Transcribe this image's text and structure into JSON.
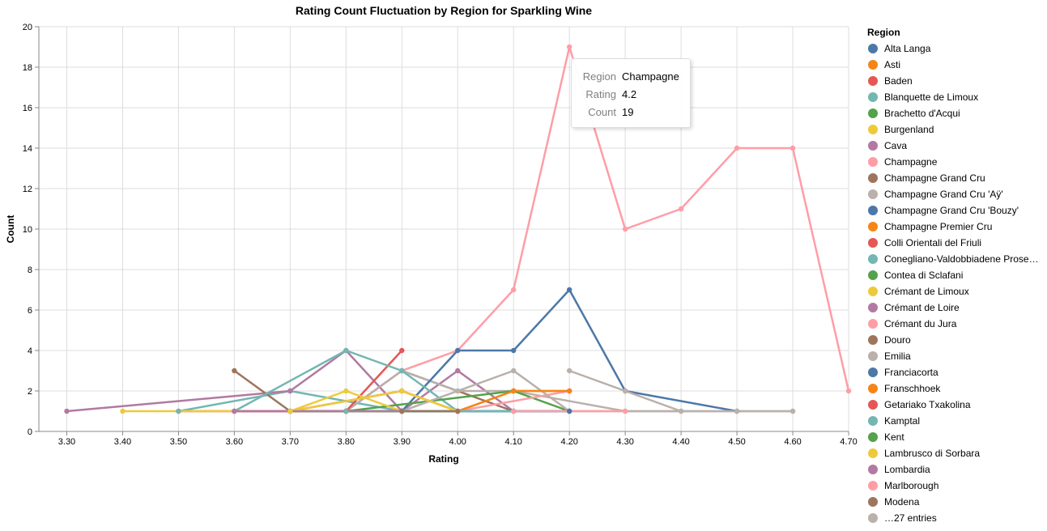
{
  "chart_data": {
    "type": "line",
    "title": "Rating Count Fluctuation by Region for Sparkling Wine",
    "xlabel": "Rating",
    "ylabel": "Count",
    "xlim": [
      3.25,
      4.7
    ],
    "ylim": [
      0,
      20
    ],
    "x_ticks": [
      "3.30",
      "3.40",
      "3.50",
      "3.60",
      "3.70",
      "3.80",
      "3.90",
      "4.00",
      "4.10",
      "4.20",
      "4.30",
      "4.40",
      "4.50",
      "4.60",
      "4.70"
    ],
    "y_ticks": [
      "0",
      "2",
      "4",
      "6",
      "8",
      "10",
      "12",
      "14",
      "16",
      "18",
      "20"
    ],
    "grid": true,
    "legend_position": "right",
    "legend_title": "Region",
    "legend_overflow": "…27 entries",
    "series": [
      {
        "name": "Alta Langa",
        "color": "#4c78a8",
        "points": [
          [
            3.9,
            1
          ],
          [
            4.2,
            1
          ]
        ]
      },
      {
        "name": "Asti",
        "color": "#f58518",
        "points": [
          [
            3.8,
            1
          ],
          [
            4.0,
            1
          ]
        ]
      },
      {
        "name": "Baden",
        "color": "#e45756",
        "points": [
          [
            3.5,
            1
          ],
          [
            3.7,
            1
          ]
        ]
      },
      {
        "name": "Blanquette de Limoux",
        "color": "#72b7b2",
        "points": [
          [
            3.5,
            1
          ],
          [
            3.7,
            2
          ],
          [
            3.9,
            1
          ],
          [
            4.2,
            1
          ]
        ]
      },
      {
        "name": "Brachetto d'Acqui",
        "color": "#54a24b",
        "points": [
          [
            3.7,
            1
          ],
          [
            4.0,
            1
          ]
        ]
      },
      {
        "name": "Burgenland",
        "color": "#eeca3b",
        "points": [
          [
            3.4,
            1
          ],
          [
            3.6,
            1
          ]
        ]
      },
      {
        "name": "Cava",
        "color": "#b279a2",
        "points": [
          [
            3.3,
            1
          ],
          [
            3.7,
            2
          ],
          [
            3.8,
            4
          ],
          [
            3.9,
            1
          ],
          [
            4.0,
            3
          ],
          [
            4.1,
            1
          ]
        ]
      },
      {
        "name": "Champagne",
        "color": "#ff9da6",
        "points": [
          [
            3.9,
            3
          ],
          [
            4.0,
            4
          ],
          [
            4.1,
            7
          ],
          [
            4.2,
            19
          ],
          [
            4.3,
            10
          ],
          [
            4.4,
            11
          ],
          [
            4.5,
            14
          ],
          [
            4.6,
            14
          ],
          [
            4.7,
            2
          ]
        ]
      },
      {
        "name": "Champagne Grand Cru",
        "color": "#9d755d",
        "points": [
          [
            3.6,
            3
          ],
          [
            3.7,
            1
          ],
          [
            3.8,
            1
          ],
          [
            3.9,
            3
          ],
          [
            4.1,
            1
          ]
        ]
      },
      {
        "name": "Champagne Grand Cru 'Aÿ'",
        "color": "#bab0ac",
        "points": [
          [
            3.8,
            1
          ],
          [
            3.9,
            3
          ],
          [
            4.0,
            2
          ],
          [
            4.1,
            2
          ],
          [
            4.3,
            1
          ],
          [
            4.6,
            1
          ]
        ]
      },
      {
        "name": "Champagne Grand Cru 'Bouzy'",
        "color": "#4c78a8",
        "points": [
          [
            3.9,
            1
          ],
          [
            4.0,
            4
          ],
          [
            4.1,
            4
          ],
          [
            4.2,
            7
          ],
          [
            4.3,
            2
          ],
          [
            4.5,
            1
          ]
        ]
      },
      {
        "name": "Champagne Premier Cru",
        "color": "#f58518",
        "points": [
          [
            3.7,
            1
          ],
          [
            3.9,
            2
          ],
          [
            4.0,
            1
          ],
          [
            4.1,
            2
          ],
          [
            4.2,
            2
          ]
        ]
      },
      {
        "name": "Colli Orientali del Friuli",
        "color": "#e45756",
        "points": [
          [
            3.8,
            1
          ],
          [
            3.9,
            4
          ]
        ]
      },
      {
        "name": "Conegliano-Valdobbiadene Prose…",
        "color": "#72b7b2",
        "points": [
          [
            3.6,
            1
          ],
          [
            3.8,
            4
          ],
          [
            3.9,
            3
          ],
          [
            4.0,
            1
          ],
          [
            4.2,
            1
          ]
        ]
      },
      {
        "name": "Contea di Sclafani",
        "color": "#54a24b",
        "points": [
          [
            3.8,
            1
          ],
          [
            4.1,
            2
          ],
          [
            4.2,
            1
          ]
        ]
      },
      {
        "name": "Crémant de Limoux",
        "color": "#eeca3b",
        "points": [
          [
            3.7,
            1
          ],
          [
            3.8,
            2
          ],
          [
            3.9,
            1
          ]
        ]
      },
      {
        "name": "Crémant de Loire",
        "color": "#b279a2",
        "points": [
          [
            3.7,
            1
          ],
          [
            3.9,
            2
          ],
          [
            4.0,
            1
          ]
        ]
      },
      {
        "name": "Crémant du Jura",
        "color": "#ff9da6",
        "points": [
          [
            4.0,
            1
          ],
          [
            4.2,
            2
          ]
        ]
      },
      {
        "name": "Douro",
        "color": "#9d755d",
        "points": [
          [
            3.8,
            1
          ],
          [
            4.0,
            1
          ]
        ]
      },
      {
        "name": "Emilia",
        "color": "#bab0ac",
        "points": [
          [
            3.9,
            1
          ],
          [
            4.1,
            3
          ],
          [
            4.2,
            1
          ],
          [
            4.4,
            1
          ]
        ]
      },
      {
        "name": "Franciacorta",
        "color": "#4c78a8",
        "points": [
          [
            3.9,
            1
          ],
          [
            4.1,
            1
          ],
          [
            4.2,
            1
          ]
        ]
      },
      {
        "name": "Franschhoek",
        "color": "#f58518",
        "points": [
          [
            4.0,
            1
          ],
          [
            4.1,
            2
          ],
          [
            4.2,
            2
          ]
        ]
      },
      {
        "name": "Getariako Txakolina",
        "color": "#e45756",
        "points": [
          [
            3.6,
            1
          ],
          [
            3.8,
            1
          ]
        ]
      },
      {
        "name": "Kamptal",
        "color": "#72b7b2",
        "points": [
          [
            3.8,
            1
          ],
          [
            4.1,
            1
          ]
        ]
      },
      {
        "name": "Kent",
        "color": "#54a24b",
        "points": [
          [
            3.7,
            1
          ],
          [
            3.9,
            1
          ]
        ]
      },
      {
        "name": "Lambrusco di Sorbara",
        "color": "#eeca3b",
        "points": [
          [
            3.7,
            1
          ],
          [
            3.9,
            2
          ],
          [
            4.0,
            1
          ]
        ]
      },
      {
        "name": "Lombardia",
        "color": "#b279a2",
        "points": [
          [
            3.6,
            1
          ],
          [
            3.9,
            1
          ]
        ]
      },
      {
        "name": "Marlborough",
        "color": "#ff9da6",
        "points": [
          [
            4.1,
            1
          ],
          [
            4.3,
            1
          ]
        ]
      },
      {
        "name": "Modena",
        "color": "#9d755d",
        "points": [
          [
            3.9,
            1
          ],
          [
            4.0,
            1
          ]
        ]
      },
      {
        "name": "…27 entries",
        "color": "#bab0ac",
        "points": [
          [
            4.2,
            3
          ],
          [
            4.3,
            2
          ],
          [
            4.4,
            1
          ],
          [
            4.5,
            1
          ],
          [
            4.6,
            1
          ]
        ]
      }
    ]
  },
  "tooltip": {
    "rows": [
      {
        "key": "Region",
        "value": "Champagne"
      },
      {
        "key": "Rating",
        "value": "4.2"
      },
      {
        "key": "Count",
        "value": "19"
      }
    ]
  }
}
